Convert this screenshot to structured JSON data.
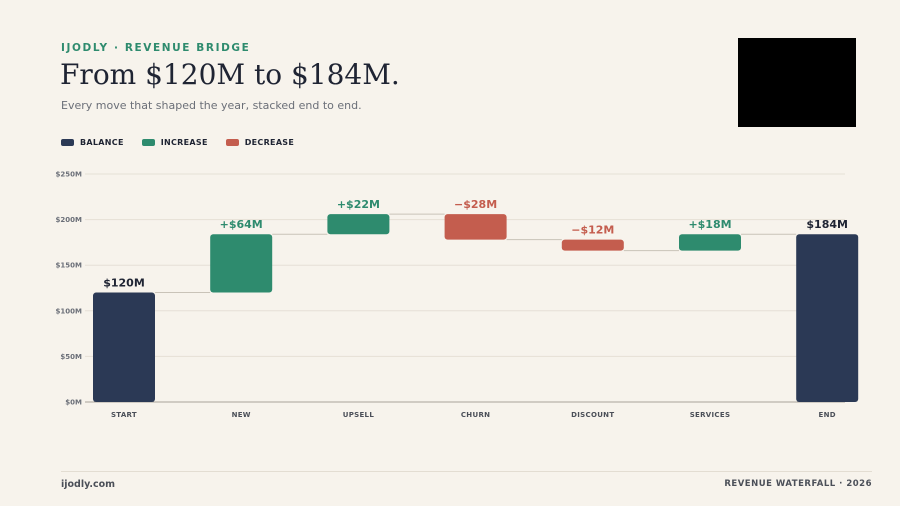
{
  "header": {
    "eyebrow": "IJODLY · REVENUE BRIDGE",
    "title": "From $120M to $184M.",
    "subtitle": "Every move that shaped the year, stacked end to end."
  },
  "legend": [
    {
      "label": "BALANCE",
      "color": "#2b3955"
    },
    {
      "label": "INCREASE",
      "color": "#2e8b6e"
    },
    {
      "label": "DECREASE",
      "color": "#c45d4e"
    }
  ],
  "footer": {
    "left": "ijodly.com",
    "right": "REVENUE WATERFALL · 2026"
  },
  "chart_data": {
    "type": "bar",
    "subtype": "waterfall",
    "categories": [
      "START",
      "NEW",
      "UPSELL",
      "CHURN",
      "DISCOUNT",
      "SERVICES",
      "END"
    ],
    "kinds": [
      "balance",
      "increase",
      "increase",
      "decrease",
      "decrease",
      "increase",
      "balance"
    ],
    "values": [
      120,
      64,
      22,
      -28,
      -12,
      18,
      184
    ],
    "data_labels": [
      "$120M",
      "+$64M",
      "+$22M",
      "−$28M",
      "−$12M",
      "+$18M",
      "$184M"
    ],
    "y_ticks": [
      0,
      50,
      100,
      150,
      200,
      250
    ],
    "y_tick_labels": [
      "$0M",
      "$50M",
      "$100M",
      "$150M",
      "$200M",
      "$250M"
    ],
    "ylim": [
      0,
      250
    ],
    "grid": true,
    "legend_position": "top-left",
    "colors": {
      "balance": "#2b3955",
      "increase": "#2e8b6e",
      "decrease": "#c45d4e"
    }
  }
}
